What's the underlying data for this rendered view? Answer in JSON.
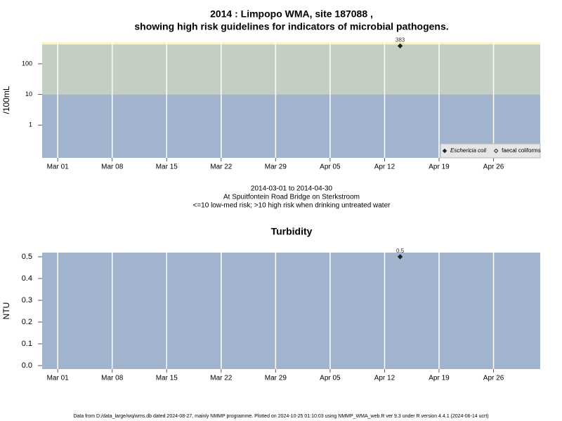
{
  "chart_data": [
    {
      "type": "scatter",
      "title": [
        "2014 : Limpopo WMA, site 187088 ,",
        "showing high risk guidelines for indicators of microbial pathogens."
      ],
      "ylabel": "/100mL",
      "caption": [
        "2014-03-01 to 2014-04-30",
        "At Spuitfontein Road Bridge on Sterkstroom",
        "<=10 low-med risk; >10 high risk when drinking untreated water"
      ],
      "log_y": true,
      "x": [
        "2014-04-14"
      ],
      "series": [
        {
          "name": "Eschericia coli",
          "marker": "filled",
          "color": "#222222",
          "values": [
            383
          ]
        },
        {
          "name": "faecal coliforms",
          "marker": "open",
          "color": "#222222",
          "values": [
            null
          ]
        }
      ],
      "xlim": [
        "2014-02-27",
        "2014-05-02"
      ],
      "xticks": [
        {
          "value": "2014-03-01",
          "label": "Mar 01"
        },
        {
          "value": "2014-03-08",
          "label": "Mar 08"
        },
        {
          "value": "2014-03-15",
          "label": "Mar 15"
        },
        {
          "value": "2014-03-22",
          "label": "Mar 22"
        },
        {
          "value": "2014-03-29",
          "label": "Mar 29"
        },
        {
          "value": "2014-04-05",
          "label": "Apr 05"
        },
        {
          "value": "2014-04-12",
          "label": "Apr 12"
        },
        {
          "value": "2014-04-19",
          "label": "Apr 19"
        },
        {
          "value": "2014-04-26",
          "label": "Apr 26"
        }
      ],
      "ylim": [
        0.085,
        510
      ],
      "yticks": [
        1,
        10,
        100
      ],
      "bands": [
        {
          "to": 10,
          "color": "#a2b4cd"
        },
        {
          "to": 430,
          "color": "#c5cec2"
        },
        {
          "to": 510,
          "color": "#f8f5c8"
        }
      ],
      "grid": "x",
      "legend": "bottom right"
    },
    {
      "type": "scatter",
      "title": [
        "Turbidity"
      ],
      "ylabel": "NTU",
      "log_y": false,
      "x": [
        "2014-04-14"
      ],
      "series": [
        {
          "name": null,
          "marker": "filled",
          "color": "#222222",
          "values": [
            0.5
          ]
        }
      ],
      "xlim": [
        "2014-02-27",
        "2014-05-02"
      ],
      "xticks": [
        {
          "value": "2014-03-01",
          "label": "Mar 01"
        },
        {
          "value": "2014-03-08",
          "label": "Mar 08"
        },
        {
          "value": "2014-03-15",
          "label": "Mar 15"
        },
        {
          "value": "2014-03-22",
          "label": "Mar 22"
        },
        {
          "value": "2014-03-29",
          "label": "Mar 29"
        },
        {
          "value": "2014-04-05",
          "label": "Apr 05"
        },
        {
          "value": "2014-04-12",
          "label": "Apr 12"
        },
        {
          "value": "2014-04-19",
          "label": "Apr 19"
        },
        {
          "value": "2014-04-26",
          "label": "Apr 26"
        }
      ],
      "ylim": [
        -0.016,
        0.519
      ],
      "yticks": [
        {
          "value": 0,
          "label": "0.0"
        },
        0.1,
        0.2,
        0.3,
        0.4,
        0.5
      ],
      "bands": [
        {
          "to": 0.519,
          "color": "#a2b4cd"
        }
      ],
      "grid": "x"
    }
  ],
  "footer": "Data from D:/data_large/wq/wms.db dated 2024-08-27, mainly NMMP programme. Plotted on 2024-10-25 01:10:03 using NMMP_WMA_web.R ver 9.3 under R version 4.4.1 (2024-06-14 ucrt)"
}
